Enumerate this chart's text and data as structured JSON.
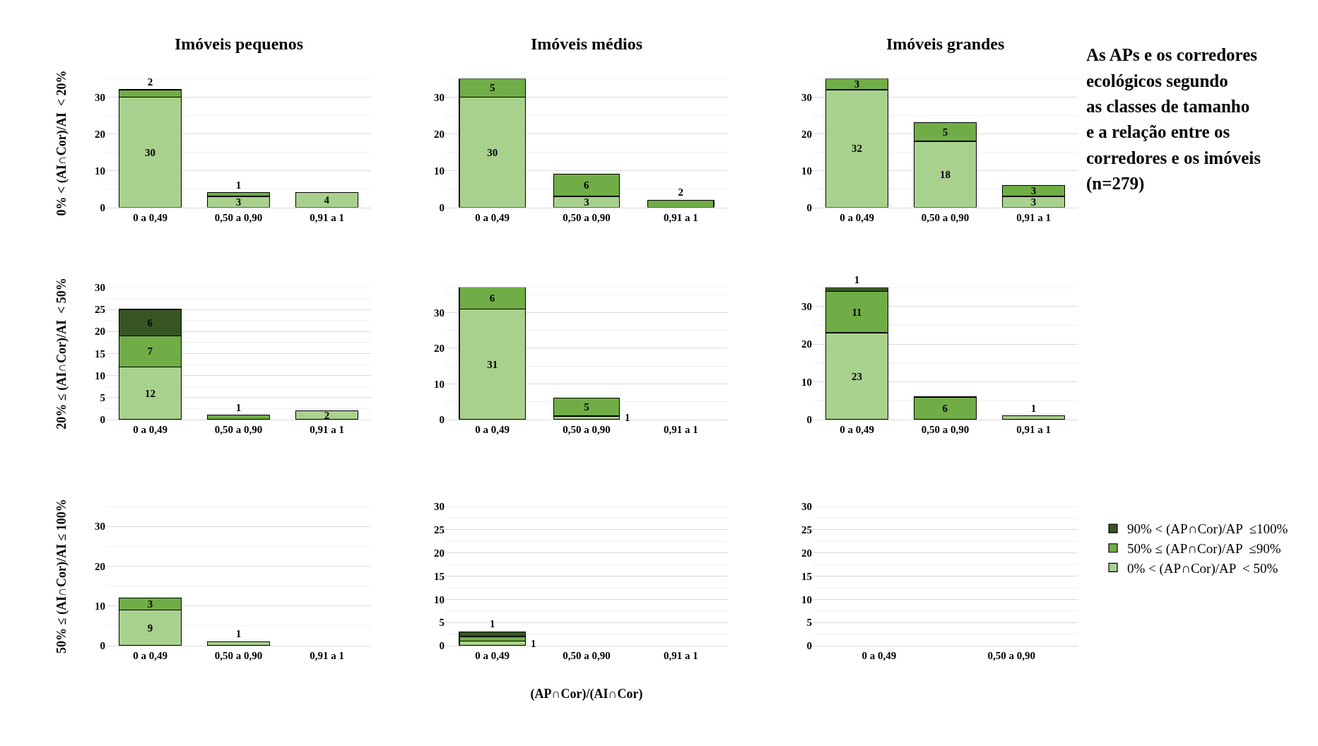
{
  "chart_data": [
    {
      "type": "bar",
      "stacked": true,
      "legend": "bottom right",
      "title": "Imóveis pequenos",
      "ylabel": "0% < (AI∩Cor)/AI  < 20%",
      "categories": [
        "0 a 0,49",
        "0,50 a 0,90",
        "0,91 a 1"
      ],
      "ylim": [
        0,
        35
      ],
      "yticks": [
        0,
        10,
        20,
        30
      ],
      "grid": "y",
      "data_labels": true,
      "series": [
        {
          "name": "0% < (AP∩Cor)/AP  < 50%",
          "color": "#a9d18e",
          "values": [
            30,
            3,
            4
          ]
        },
        {
          "name": "50% ≤ (AP∩Cor)/AP  ≤90%",
          "color": "#70ad47",
          "values": [
            2,
            1,
            null
          ]
        }
      ]
    },
    {
      "type": "bar",
      "stacked": true,
      "title": "Imóveis médios",
      "categories": [
        "0 a 0,49",
        "0,50 a 0,90",
        "0,91 a 1"
      ],
      "ylim": [
        0,
        35
      ],
      "yticks": [
        0,
        10,
        20,
        30
      ],
      "grid": "y",
      "data_labels": true,
      "series": [
        {
          "name": "0% < (AP∩Cor)/AP  < 50%",
          "color": "#a9d18e",
          "values": [
            30,
            3,
            null
          ]
        },
        {
          "name": "50% ≤ (AP∩Cor)/AP  ≤90%",
          "color": "#70ad47",
          "values": [
            5,
            6,
            2
          ]
        }
      ]
    },
    {
      "type": "bar",
      "stacked": true,
      "title": "Imóveis grandes",
      "categories": [
        "0 a 0,49",
        "0,50 a 0,90",
        "0,91 a 1"
      ],
      "ylim": [
        0,
        35
      ],
      "yticks": [
        0,
        10,
        20,
        30
      ],
      "grid": "y",
      "data_labels": true,
      "series": [
        {
          "name": "0% < (AP∩Cor)/AP  < 50%",
          "color": "#a9d18e",
          "values": [
            32,
            18,
            3
          ]
        },
        {
          "name": "50% ≤ (AP∩Cor)/AP  ≤90%",
          "color": "#70ad47",
          "values": [
            3,
            5,
            3
          ]
        }
      ]
    },
    {
      "type": "bar",
      "stacked": true,
      "ylabel": "20% ≤ (AI∩Cor)/AI  < 50%",
      "categories": [
        "0 a 0,49",
        "0,50 a 0,90",
        "0,91 a 1"
      ],
      "ylim": [
        0,
        30
      ],
      "yticks": [
        0,
        5,
        10,
        15,
        20,
        25,
        30
      ],
      "grid": "y",
      "data_labels": true,
      "series": [
        {
          "name": "0% < (AP∩Cor)/AP  < 50%",
          "color": "#a9d18e",
          "values": [
            12,
            null,
            2
          ]
        },
        {
          "name": "50% ≤ (AP∩Cor)/AP  ≤90%",
          "color": "#70ad47",
          "values": [
            7,
            1,
            null
          ]
        },
        {
          "name": "90% < (AP∩Cor)/AP  ≤100%",
          "color": "#375623",
          "values": [
            6,
            null,
            null
          ]
        }
      ]
    },
    {
      "type": "bar",
      "stacked": true,
      "categories": [
        "0 a 0,49",
        "0,50 a 0,90",
        "0,91 a 1"
      ],
      "ylim": [
        0,
        37
      ],
      "yticks": [
        0,
        10,
        20,
        30
      ],
      "grid": "y",
      "data_labels": true,
      "series": [
        {
          "name": "0% < (AP∩Cor)/AP  < 50%",
          "color": "#a9d18e",
          "values": [
            31,
            1,
            null
          ]
        },
        {
          "name": "50% ≤ (AP∩Cor)/AP  ≤90%",
          "color": "#70ad47",
          "values": [
            6,
            5,
            null
          ]
        }
      ]
    },
    {
      "type": "bar",
      "stacked": true,
      "categories": [
        "0 a 0,49",
        "0,50 a 0,90",
        "0,91 a 1"
      ],
      "ylim": [
        0,
        35
      ],
      "yticks": [
        0,
        10,
        20,
        30
      ],
      "grid": "y",
      "data_labels": true,
      "series": [
        {
          "name": "0% < (AP∩Cor)/AP  < 50%",
          "color": "#a9d18e",
          "values": [
            23,
            null,
            1
          ]
        },
        {
          "name": "50% ≤ (AP∩Cor)/AP  ≤90%",
          "color": "#70ad47",
          "values": [
            11,
            6,
            null
          ]
        },
        {
          "name": "90% < (AP∩Cor)/AP  ≤100%",
          "color": "#375623",
          "values": [
            1,
            null,
            null
          ]
        }
      ]
    },
    {
      "type": "bar",
      "stacked": true,
      "ylabel": "50% ≤ (AI∩Cor)/AI ≤ 100%",
      "categories": [
        "0 a 0,49",
        "0,50 a 0,90",
        "0,91 a 1"
      ],
      "ylim": [
        0,
        35
      ],
      "yticks": [
        0,
        10,
        20,
        30
      ],
      "grid": "y",
      "data_labels": true,
      "series": [
        {
          "name": "0% < (AP∩Cor)/AP  < 50%",
          "color": "#a9d18e",
          "values": [
            9,
            1,
            null
          ]
        },
        {
          "name": "50% ≤ (AP∩Cor)/AP  ≤90%",
          "color": "#70ad47",
          "values": [
            3,
            null,
            null
          ]
        }
      ]
    },
    {
      "type": "bar",
      "stacked": true,
      "xlabel": "(AP∩Cor)/(AI∩Cor)",
      "categories": [
        "0 a 0,49",
        "0,50 a 0,90",
        "0,91 a 1"
      ],
      "ylim": [
        0,
        30
      ],
      "yticks": [
        0,
        5,
        10,
        15,
        20,
        25,
        30
      ],
      "grid": "y",
      "series": [
        {
          "name": "0% < (AP∩Cor)/AP  < 50%",
          "color": "#a9d18e",
          "values": [
            1,
            null,
            null
          ],
          "value_labels": [
            "1",
            null,
            null
          ]
        },
        {
          "name": "50% ≤ (AP∩Cor)/AP  ≤90%",
          "color": "#70ad47",
          "values": [
            1,
            null,
            null
          ],
          "value_labels": [
            null,
            null,
            null
          ]
        },
        {
          "name": "90% < (AP∩Cor)/AP  ≤100%",
          "color": "#375623",
          "values": [
            1,
            null,
            null
          ],
          "value_labels": [
            "1",
            null,
            null
          ]
        }
      ]
    },
    {
      "type": "bar",
      "stacked": true,
      "categories": [
        "0 a 0,49",
        "0,50 a 0,90"
      ],
      "ylim": [
        0,
        30
      ],
      "yticks": [
        0,
        5,
        10,
        15,
        20,
        25,
        30
      ],
      "grid": "y",
      "series": [
        {
          "name": "0% < (AP∩Cor)/AP  < 50%",
          "color": "#a9d18e",
          "values": [
            null,
            null
          ]
        },
        {
          "name": "50% ≤ (AP∩Cor)/AP  ≤90%",
          "color": "#70ad47",
          "values": [
            null,
            null
          ]
        },
        {
          "name": "90% < (AP∩Cor)/AP  ≤100%",
          "color": "#375623",
          "values": [
            null,
            null
          ]
        }
      ]
    },
    {
      "type": "other",
      "annotations": [
        "As APs e os corredores",
        "ecológicos segundo",
        "as classes de tamanho",
        "e a relação entre os",
        "corredores e os imóveis",
        "(n=279)"
      ]
    }
  ]
}
